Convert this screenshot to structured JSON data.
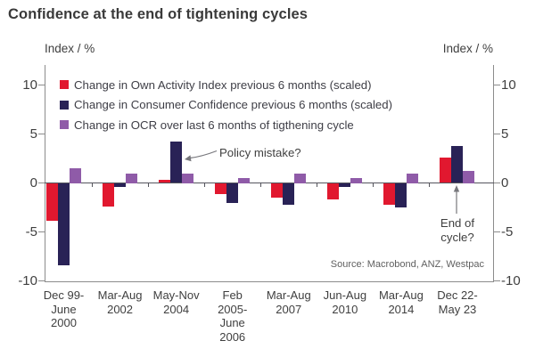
{
  "title": "Confidence at the end of tightening cycles",
  "axes": {
    "left_title": "Index / %",
    "right_title": "Index / %"
  },
  "legend": [
    {
      "label": "Change in Own Activity Index previous 6 months (scaled)",
      "color": "#e1182f"
    },
    {
      "label": "Change in Consumer Confidence previous 6 months (scaled)",
      "color": "#292256"
    },
    {
      "label": "Change in OCR over last 6 months of tigthening cycle",
      "color": "#8f5ba8"
    }
  ],
  "annotations": {
    "policy_mistake": "Policy mistake?",
    "end_of_cycle": "End of\ncycle?"
  },
  "source": "Source: Macrobond, ANZ, Westpac",
  "colors": {
    "own_activity": "#e1182f",
    "consumer_confidence": "#292256",
    "ocr": "#8f5ba8",
    "axis": "#8c8c8c",
    "zero_line": "#55555d",
    "text": "#3f3f3f"
  },
  "chart_data": {
    "type": "bar",
    "title": "Confidence at the end of tightening cycles",
    "ylabel": "Index / %",
    "yticks": [
      10,
      5,
      0,
      -5,
      -10
    ],
    "ylim": [
      -10,
      12
    ],
    "grid": false,
    "legend_position": "top-left-inside",
    "categories": [
      "Dec 99-\nJune\n2000",
      "Mar-Aug\n2002",
      "May-Nov\n2004",
      "Feb\n2005-\nJune\n2006",
      "Mar-Aug\n2007",
      "Jun-Aug\n2010",
      "Mar-Aug\n2014",
      "Dec 22-\nMay 23"
    ],
    "series": [
      {
        "name": "Change in Own Activity Index previous 6 months (scaled)",
        "color": "#e1182f",
        "values": [
          -3.9,
          -2.4,
          0.3,
          -1.1,
          -1.5,
          -1.7,
          -2.2,
          2.6
        ]
      },
      {
        "name": "Change in Consumer Confidence previous 6 months (scaled)",
        "color": "#292256",
        "values": [
          -8.4,
          -0.4,
          4.2,
          -2.0,
          -2.2,
          -0.4,
          -2.5,
          3.8
        ]
      },
      {
        "name": "Change in OCR over last 6 months of tigthening cycle",
        "color": "#8f5ba8",
        "values": [
          1.5,
          1.0,
          1.0,
          0.5,
          1.0,
          0.5,
          1.0,
          1.25
        ]
      }
    ]
  }
}
